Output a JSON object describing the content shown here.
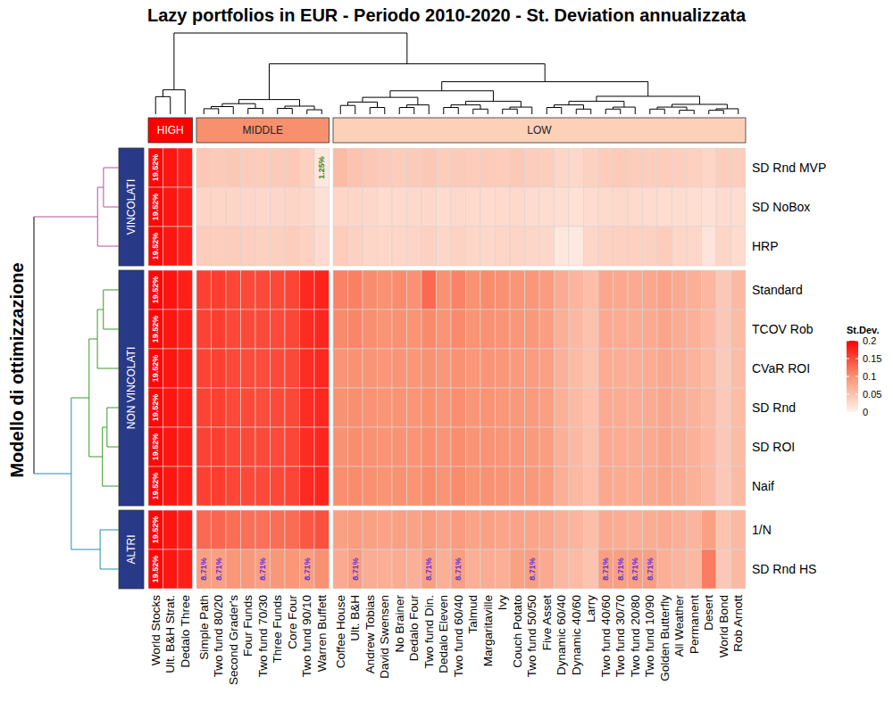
{
  "chart_data": {
    "type": "heatmap",
    "title": "Lazy portfolios in EUR - Periodo 2010-2020 - St. Deviation annualizzata",
    "y_label": "Modello di ottimizzazione",
    "columns": [
      "World Stocks",
      "Ult. B&H Strat.",
      "Dedalo Three",
      "Simple Path",
      "Two fund 80/20",
      "Second Grader's",
      "Four Funds",
      "Two fund 70/30",
      "Three Funds",
      "Core Four",
      "Two fund 90/10",
      "Warren Buffett",
      "Coffee House",
      "Ult. B&H",
      "Andrew Tobias",
      "David Swensen",
      "No Brainer",
      "Dedalo Four",
      "Two fund Din.",
      "Dedalo Eleven",
      "Two fund 60/40",
      "Talmud",
      "Margaritaville",
      "Ivy",
      "Couch Potato",
      "Two fund 50/50",
      "Five Asset",
      "Dynamic 60/40",
      "Dynamic 40/60",
      "Larry",
      "Two fund 40/60",
      "Two fund 30/70",
      "Two fund 20/80",
      "Two fund 10/90",
      "Golden Butterfly",
      "All Weather",
      "Permanent",
      "Desert",
      "World Bond",
      "Rob Arnott"
    ],
    "rows": [
      "SD Rnd MVP",
      "SD NoBox",
      "HRP",
      "Standard",
      "TCOV Rob",
      "CVaR ROI",
      "SD Rnd",
      "SD ROI",
      "Naif",
      "1/N",
      "SD Rnd HS"
    ],
    "column_groups": [
      {
        "name": "HIGH",
        "color": "#ff0000",
        "columns": [
          "World Stocks",
          "Ult. B&H Strat.",
          "Dedalo Three"
        ]
      },
      {
        "name": "MIDDLE",
        "color": "#f8906e",
        "columns": [
          "Simple Path",
          "Two fund 80/20",
          "Second Grader's",
          "Four Funds",
          "Two fund 70/30",
          "Three Funds",
          "Core Four",
          "Two fund 90/10",
          "Warren Buffett"
        ]
      },
      {
        "name": "LOW",
        "color": "#fdd0b8",
        "columns": [
          "Coffee House",
          "Ult. B&H",
          "Andrew Tobias",
          "David Swensen",
          "No Brainer",
          "Dedalo Four",
          "Two fund Din.",
          "Dedalo Eleven",
          "Two fund 60/40",
          "Talmud",
          "Margaritaville",
          "Ivy",
          "Couch Potato",
          "Two fund 50/50",
          "Five Asset",
          "Dynamic 60/40",
          "Dynamic 40/60",
          "Larry",
          "Two fund 40/60",
          "Two fund 30/70",
          "Two fund 20/80",
          "Two fund 10/90",
          "Golden Butterfly",
          "All Weather",
          "Permanent",
          "Desert",
          "World Bond",
          "Rob Arnott"
        ]
      }
    ],
    "row_groups": [
      {
        "name": "VINCOLATI",
        "color": "#b5519f",
        "rows": [
          "SD Rnd MVP",
          "SD NoBox",
          "HRP"
        ]
      },
      {
        "name": "NON VINCOLATI",
        "color": "#3a9a2a",
        "rows": [
          "Standard",
          "TCOV Rob",
          "CVaR ROI",
          "SD Rnd",
          "SD ROI",
          "Naif"
        ]
      },
      {
        "name": "ALTRI",
        "color": "#2b8cb0",
        "rows": [
          "1/N",
          "SD Rnd HS"
        ]
      }
    ],
    "values": [
      [
        0.1952,
        0.185,
        0.178,
        0.045,
        0.042,
        0.044,
        0.041,
        0.04,
        0.042,
        0.043,
        0.036,
        0.0125,
        0.058,
        0.05,
        0.045,
        0.042,
        0.04,
        0.042,
        0.045,
        0.04,
        0.042,
        0.04,
        0.042,
        0.04,
        0.043,
        0.04,
        0.038,
        0.03,
        0.028,
        0.035,
        0.04,
        0.042,
        0.04,
        0.038,
        0.04,
        0.038,
        0.036,
        0.03,
        0.04,
        0.038
      ],
      [
        0.1952,
        0.185,
        0.178,
        0.032,
        0.03,
        0.031,
        0.03,
        0.029,
        0.03,
        0.031,
        0.028,
        0.02,
        0.03,
        0.03,
        0.028,
        0.025,
        0.026,
        0.027,
        0.028,
        0.025,
        0.027,
        0.026,
        0.025,
        0.026,
        0.027,
        0.025,
        0.024,
        0.022,
        0.02,
        0.025,
        0.026,
        0.027,
        0.026,
        0.025,
        0.024,
        0.024,
        0.022,
        0.02,
        0.025,
        0.024
      ],
      [
        0.1952,
        0.185,
        0.178,
        0.04,
        0.038,
        0.04,
        0.038,
        0.036,
        0.037,
        0.039,
        0.034,
        0.025,
        0.04,
        0.035,
        0.03,
        0.028,
        0.03,
        0.032,
        0.035,
        0.03,
        0.034,
        0.03,
        0.028,
        0.03,
        0.032,
        0.03,
        0.028,
        0.012,
        0.01,
        0.03,
        0.034,
        0.035,
        0.036,
        0.035,
        0.04,
        0.03,
        0.028,
        0.015,
        0.03,
        0.025
      ],
      [
        0.1952,
        0.186,
        0.179,
        0.156,
        0.158,
        0.152,
        0.15,
        0.15,
        0.151,
        0.153,
        0.172,
        0.176,
        0.11,
        0.112,
        0.104,
        0.1,
        0.104,
        0.1,
        0.128,
        0.1,
        0.11,
        0.1,
        0.104,
        0.1,
        0.096,
        0.095,
        0.09,
        0.074,
        0.064,
        0.055,
        0.078,
        0.076,
        0.075,
        0.078,
        0.082,
        0.075,
        0.07,
        0.062,
        0.045,
        0.06
      ],
      [
        0.1952,
        0.185,
        0.178,
        0.155,
        0.157,
        0.151,
        0.149,
        0.149,
        0.15,
        0.152,
        0.17,
        0.174,
        0.105,
        0.108,
        0.102,
        0.098,
        0.1,
        0.098,
        0.105,
        0.098,
        0.105,
        0.098,
        0.1,
        0.097,
        0.094,
        0.093,
        0.088,
        0.07,
        0.06,
        0.052,
        0.075,
        0.073,
        0.072,
        0.075,
        0.08,
        0.073,
        0.068,
        0.06,
        0.044,
        0.058
      ],
      [
        0.1952,
        0.185,
        0.178,
        0.154,
        0.156,
        0.15,
        0.148,
        0.148,
        0.149,
        0.151,
        0.169,
        0.173,
        0.098,
        0.1,
        0.098,
        0.095,
        0.097,
        0.095,
        0.1,
        0.095,
        0.1,
        0.095,
        0.097,
        0.094,
        0.092,
        0.09,
        0.086,
        0.068,
        0.058,
        0.05,
        0.073,
        0.071,
        0.07,
        0.073,
        0.078,
        0.072,
        0.066,
        0.058,
        0.042,
        0.056
      ],
      [
        0.1952,
        0.185,
        0.178,
        0.154,
        0.156,
        0.15,
        0.149,
        0.148,
        0.149,
        0.151,
        0.169,
        0.173,
        0.1,
        0.102,
        0.099,
        0.096,
        0.098,
        0.096,
        0.101,
        0.096,
        0.102,
        0.096,
        0.098,
        0.095,
        0.093,
        0.091,
        0.087,
        0.069,
        0.059,
        0.051,
        0.074,
        0.072,
        0.071,
        0.074,
        0.079,
        0.073,
        0.067,
        0.059,
        0.043,
        0.057
      ],
      [
        0.1952,
        0.185,
        0.178,
        0.155,
        0.157,
        0.151,
        0.149,
        0.149,
        0.15,
        0.152,
        0.17,
        0.174,
        0.1,
        0.103,
        0.1,
        0.097,
        0.099,
        0.097,
        0.102,
        0.097,
        0.103,
        0.097,
        0.099,
        0.096,
        0.094,
        0.092,
        0.088,
        0.07,
        0.06,
        0.052,
        0.075,
        0.073,
        0.072,
        0.075,
        0.08,
        0.074,
        0.068,
        0.06,
        0.044,
        0.058
      ],
      [
        0.1952,
        0.185,
        0.178,
        0.156,
        0.158,
        0.152,
        0.15,
        0.15,
        0.151,
        0.153,
        0.171,
        0.175,
        0.102,
        0.104,
        0.101,
        0.098,
        0.1,
        0.098,
        0.104,
        0.098,
        0.104,
        0.098,
        0.1,
        0.097,
        0.095,
        0.093,
        0.089,
        0.071,
        0.061,
        0.053,
        0.076,
        0.074,
        0.073,
        0.076,
        0.081,
        0.075,
        0.069,
        0.061,
        0.045,
        0.059
      ],
      [
        0.1952,
        0.185,
        0.178,
        0.128,
        0.13,
        0.125,
        0.124,
        0.123,
        0.125,
        0.126,
        0.14,
        0.145,
        0.085,
        0.09,
        0.085,
        0.082,
        0.085,
        0.083,
        0.09,
        0.082,
        0.09,
        0.082,
        0.085,
        0.08,
        0.082,
        0.08,
        0.078,
        0.07,
        0.065,
        0.055,
        0.075,
        0.072,
        0.07,
        0.072,
        0.075,
        0.07,
        0.065,
        0.085,
        0.05,
        0.06
      ],
      [
        0.1952,
        0.185,
        0.178,
        0.0871,
        0.0871,
        0.095,
        0.093,
        0.0871,
        0.094,
        0.095,
        0.0871,
        0.1,
        0.075,
        0.0871,
        0.072,
        0.07,
        0.072,
        0.07,
        0.0871,
        0.07,
        0.0871,
        0.07,
        0.072,
        0.07,
        0.085,
        0.0871,
        0.075,
        0.062,
        0.058,
        0.05,
        0.0871,
        0.0871,
        0.0871,
        0.0871,
        0.07,
        0.065,
        0.06,
        0.115,
        0.045,
        0.06
      ]
    ],
    "color_scale": {
      "title": "St.Dev.",
      "range": [
        0,
        0.2
      ],
      "ticks": [
        0,
        0.05,
        0.1,
        0.15,
        0.2
      ]
    },
    "annotations": [
      {
        "row": "SD Rnd MVP",
        "column": "World Stocks",
        "text": "19.52%",
        "color": "#ffffff"
      },
      {
        "row": "SD NoBox",
        "column": "World Stocks",
        "text": "19.52%",
        "color": "#ffffff"
      },
      {
        "row": "HRP",
        "column": "World Stocks",
        "text": "19.52%",
        "color": "#ffffff"
      },
      {
        "row": "Standard",
        "column": "World Stocks",
        "text": "19.52%",
        "color": "#ffffff"
      },
      {
        "row": "TCOV Rob",
        "column": "World Stocks",
        "text": "19.52%",
        "color": "#ffffff"
      },
      {
        "row": "CVaR ROI",
        "column": "World Stocks",
        "text": "19.52%",
        "color": "#ffffff"
      },
      {
        "row": "SD Rnd",
        "column": "World Stocks",
        "text": "19.52%",
        "color": "#ffffff"
      },
      {
        "row": "SD ROI",
        "column": "World Stocks",
        "text": "19.52%",
        "color": "#ffffff"
      },
      {
        "row": "Naif",
        "column": "World Stocks",
        "text": "19.52%",
        "color": "#ffffff"
      },
      {
        "row": "1/N",
        "column": "World Stocks",
        "text": "19.52%",
        "color": "#ffffff"
      },
      {
        "row": "SD Rnd HS",
        "column": "World Stocks",
        "text": "19.52%",
        "color": "#ffffff"
      },
      {
        "row": "SD Rnd MVP",
        "column": "Warren Buffett",
        "text": "1.25%",
        "color": "#2e8b22"
      },
      {
        "row": "SD Rnd HS",
        "column": "Simple Path",
        "text": "8.71%",
        "color": "#5a35d0"
      },
      {
        "row": "SD Rnd HS",
        "column": "Two fund 80/20",
        "text": "8.71%",
        "color": "#5a35d0"
      },
      {
        "row": "SD Rnd HS",
        "column": "Two fund 70/30",
        "text": "8.71%",
        "color": "#5a35d0"
      },
      {
        "row": "SD Rnd HS",
        "column": "Two fund 90/10",
        "text": "8.71%",
        "color": "#5a35d0"
      },
      {
        "row": "SD Rnd HS",
        "column": "Ult. B&H",
        "text": "8.71%",
        "color": "#5a35d0"
      },
      {
        "row": "SD Rnd HS",
        "column": "Two fund Din.",
        "text": "8.71%",
        "color": "#5a35d0"
      },
      {
        "row": "SD Rnd HS",
        "column": "Two fund 60/40",
        "text": "8.71%",
        "color": "#5a35d0"
      },
      {
        "row": "SD Rnd HS",
        "column": "Two fund 50/50",
        "text": "8.71%",
        "color": "#5a35d0"
      },
      {
        "row": "SD Rnd HS",
        "column": "Two fund 40/60",
        "text": "8.71%",
        "color": "#5a35d0"
      },
      {
        "row": "SD Rnd HS",
        "column": "Two fund 30/70",
        "text": "8.71%",
        "color": "#5a35d0"
      },
      {
        "row": "SD Rnd HS",
        "column": "Two fund 20/80",
        "text": "8.71%",
        "color": "#5a35d0"
      },
      {
        "row": "SD Rnd HS",
        "column": "Two fund 10/90",
        "text": "8.71%",
        "color": "#5a35d0"
      }
    ]
  }
}
